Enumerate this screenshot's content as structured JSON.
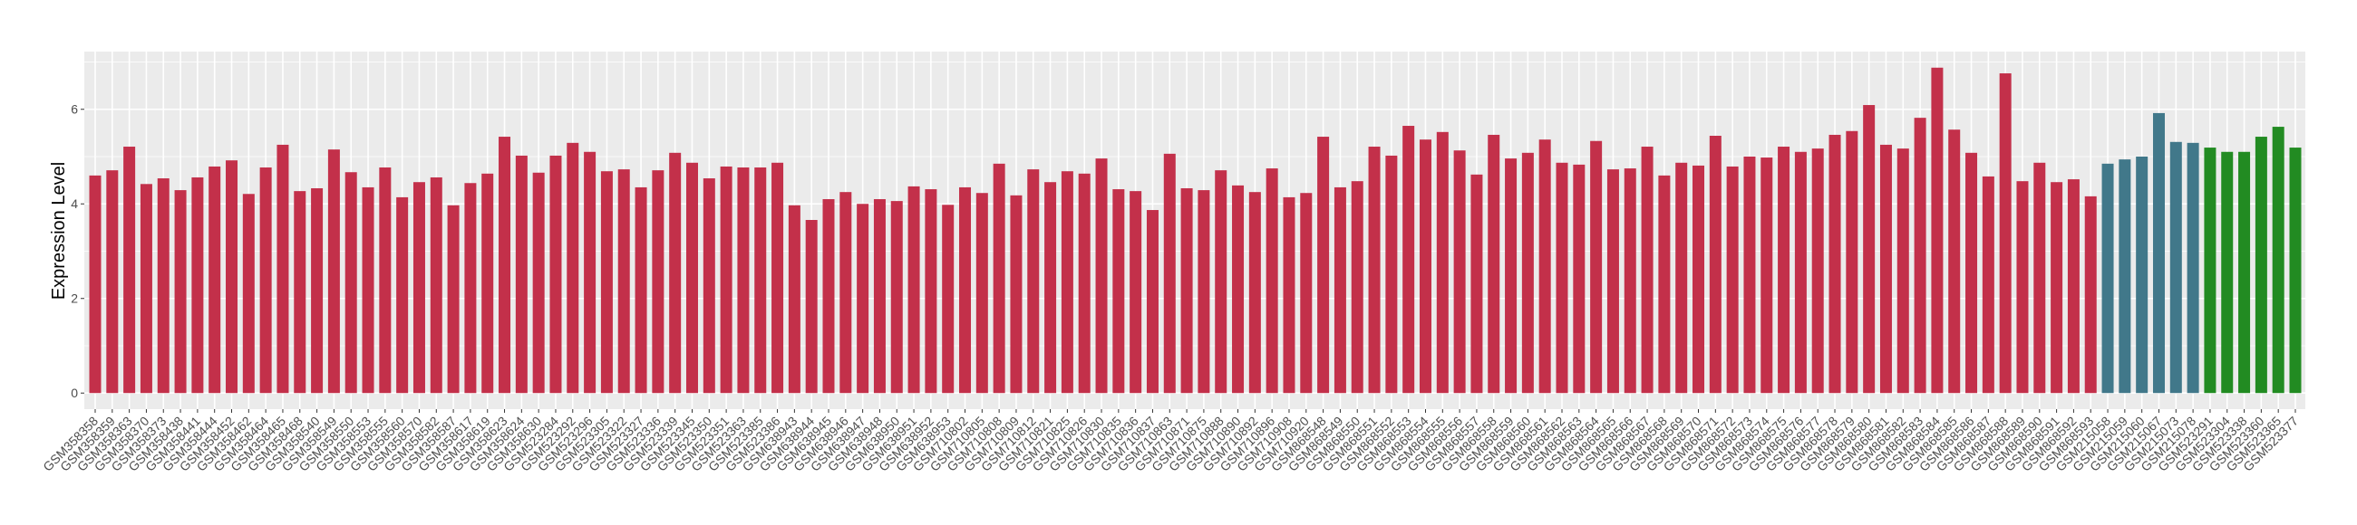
{
  "chart_data": {
    "type": "bar",
    "title": "",
    "xlabel": "",
    "ylabel": "Expression Level",
    "ylim": [
      -0.34,
      7.22
    ],
    "yticks": [
      0,
      2,
      4,
      6
    ],
    "grid": true,
    "legend": "none",
    "groups": [
      {
        "color": "#C3304A",
        "categories": [
          "GSM358358",
          "GSM358359",
          "GSM358363",
          "GSM358370",
          "GSM358373",
          "GSM358438",
          "GSM358441",
          "GSM358444",
          "GSM358452",
          "GSM358462",
          "GSM358464",
          "GSM358465",
          "GSM358468",
          "GSM358540",
          "GSM358549",
          "GSM358550",
          "GSM358553",
          "GSM358555",
          "GSM358560",
          "GSM358570",
          "GSM358582",
          "GSM358587",
          "GSM358617",
          "GSM358619",
          "GSM358623",
          "GSM358624",
          "GSM358630",
          "GSM523284",
          "GSM523292",
          "GSM523296",
          "GSM523305",
          "GSM523322",
          "GSM523327",
          "GSM523336",
          "GSM523339",
          "GSM523345",
          "GSM523350",
          "GSM523351",
          "GSM523363",
          "GSM523385",
          "GSM523386",
          "GSM638943",
          "GSM638944",
          "GSM638945",
          "GSM638946",
          "GSM638947",
          "GSM638948",
          "GSM638950",
          "GSM638951",
          "GSM638952",
          "GSM638953",
          "GSM710802",
          "GSM710805",
          "GSM710808",
          "GSM710809",
          "GSM710812",
          "GSM710821",
          "GSM710825",
          "GSM710826",
          "GSM710830",
          "GSM710835",
          "GSM710836",
          "GSM710837",
          "GSM710863",
          "GSM710871",
          "GSM710875",
          "GSM710888",
          "GSM710890",
          "GSM710892",
          "GSM710896",
          "GSM710908",
          "GSM710920",
          "GSM868548",
          "GSM868549",
          "GSM868550",
          "GSM868551",
          "GSM868552",
          "GSM868553",
          "GSM868554",
          "GSM868555",
          "GSM868556",
          "GSM868557",
          "GSM868558",
          "GSM868559",
          "GSM868560",
          "GSM868561",
          "GSM868562",
          "GSM868563",
          "GSM868564",
          "GSM868565",
          "GSM868566",
          "GSM868567",
          "GSM868568",
          "GSM868569",
          "GSM868570",
          "GSM868571",
          "GSM868572",
          "GSM868573",
          "GSM868574",
          "GSM868575",
          "GSM868576",
          "GSM868577",
          "GSM868578",
          "GSM868579",
          "GSM868580",
          "GSM868581",
          "GSM868582",
          "GSM868583",
          "GSM868584",
          "GSM868585",
          "GSM868586",
          "GSM868587",
          "GSM868588",
          "GSM868589",
          "GSM868590",
          "GSM868591",
          "GSM868592",
          "GSM868593"
        ],
        "values": [
          4.6,
          4.71,
          5.21,
          4.42,
          4.54,
          4.29,
          4.56,
          4.79,
          4.92,
          4.21,
          4.77,
          5.25,
          4.27,
          4.33,
          5.15,
          4.67,
          4.35,
          4.77,
          4.14,
          4.46,
          4.56,
          3.97,
          4.44,
          4.64,
          5.42,
          5.02,
          4.66,
          5.02,
          5.29,
          5.1,
          4.69,
          4.73,
          4.35,
          4.71,
          5.08,
          4.87,
          4.54,
          4.79,
          4.77,
          4.77,
          4.87,
          3.97,
          3.66,
          4.1,
          4.25,
          4.0,
          4.1,
          4.06,
          4.37,
          4.31,
          3.98,
          4.35,
          4.23,
          4.85,
          4.18,
          4.73,
          4.46,
          4.69,
          4.64,
          4.96,
          4.31,
          4.27,
          3.87,
          5.06,
          4.33,
          4.29,
          4.71,
          4.39,
          4.25,
          4.75,
          4.14,
          4.23,
          5.42,
          4.35,
          4.48,
          5.21,
          5.02,
          5.65,
          5.36,
          5.52,
          5.13,
          4.62,
          5.46,
          4.96,
          5.08,
          5.36,
          4.87,
          4.83,
          5.33,
          4.73,
          4.75,
          5.21,
          4.6,
          4.87,
          4.81,
          5.44,
          4.79,
          5.0,
          4.98,
          5.21,
          5.1,
          5.17,
          5.46,
          5.54,
          6.09,
          5.25,
          5.17,
          5.82,
          6.88,
          5.57,
          5.08,
          4.58,
          6.76,
          4.48,
          4.87,
          4.46,
          4.52,
          4.16
        ]
      },
      {
        "color": "#41788A",
        "categories": [
          "GSM215058",
          "GSM215059",
          "GSM215060",
          "GSM215067",
          "GSM215073",
          "GSM215078"
        ],
        "values": [
          4.85,
          4.94,
          5.0,
          5.92,
          5.31,
          5.29
        ]
      },
      {
        "color": "#228B22",
        "categories": [
          "GSM523291",
          "GSM523304",
          "GSM523338",
          "GSM523360",
          "GSM523365",
          "GSM523377"
        ],
        "values": [
          5.19,
          5.1,
          5.1,
          5.42,
          5.63,
          5.19
        ]
      }
    ]
  }
}
